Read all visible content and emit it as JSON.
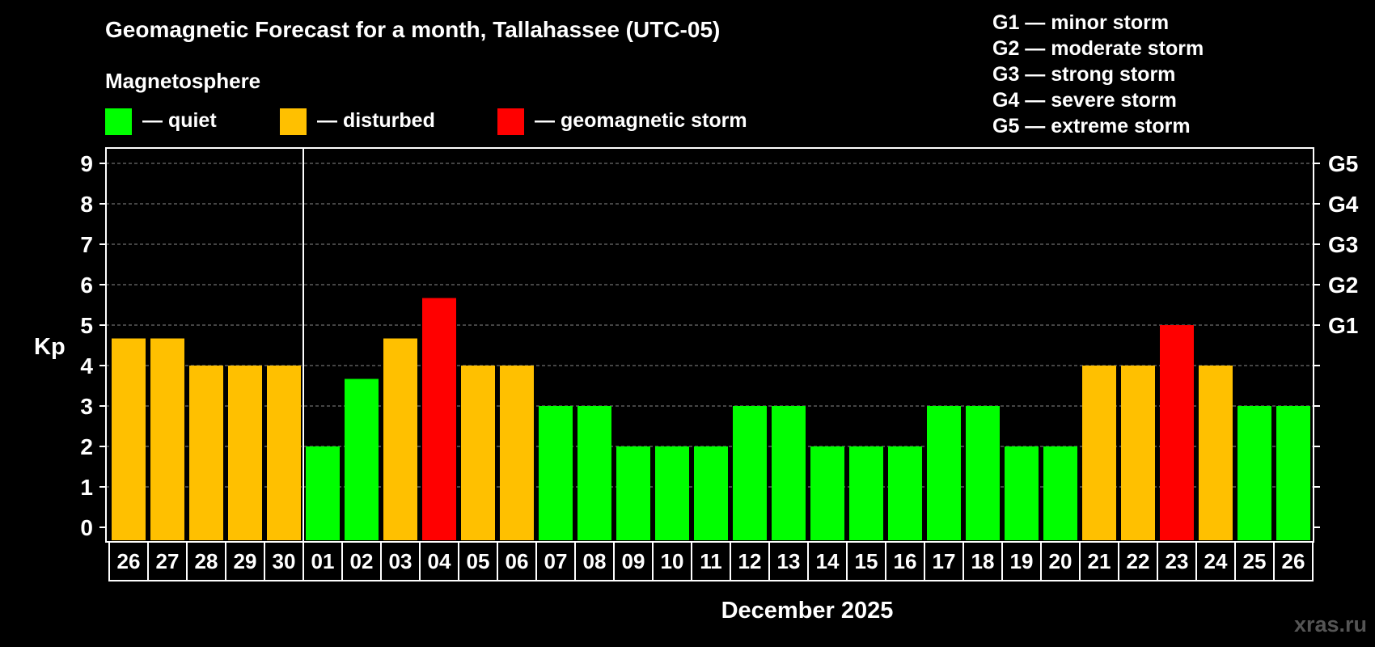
{
  "title": "Geomagnetic Forecast for a month, Tallahassee (UTC-05)",
  "legend": {
    "heading": "Magnetosphere",
    "items": [
      {
        "label": "— quiet",
        "color": "#00ff00"
      },
      {
        "label": "— disturbed",
        "color": "#ffc000"
      },
      {
        "label": "— geomagnetic storm",
        "color": "#ff0000"
      }
    ]
  },
  "storm_scale": [
    "G1 — minor storm",
    "G2 — moderate storm",
    "G3 — strong storm",
    "G4 — severe storm",
    "G5 — extreme storm"
  ],
  "watermark": "xras.ru",
  "chart_data": {
    "type": "bar",
    "ylabel": "Kp",
    "xlabel": "December 2025",
    "ylim": [
      0,
      9
    ],
    "yticks": [
      "0",
      "1",
      "2",
      "3",
      "4",
      "5",
      "6",
      "7",
      "8",
      "9"
    ],
    "right_axis": {
      "5": "G1",
      "6": "G2",
      "7": "G3",
      "8": "G4",
      "9": "G5"
    },
    "grid": "dashed horizontal",
    "month_divider_after_index": 4,
    "categories": [
      "26",
      "27",
      "28",
      "29",
      "30",
      "01",
      "02",
      "03",
      "04",
      "05",
      "06",
      "07",
      "08",
      "09",
      "10",
      "11",
      "12",
      "13",
      "14",
      "15",
      "16",
      "17",
      "18",
      "19",
      "20",
      "21",
      "22",
      "23",
      "24",
      "25",
      "26"
    ],
    "values": [
      4.67,
      4.67,
      4,
      4,
      4,
      2,
      3.67,
      4.67,
      5.67,
      4,
      4,
      3,
      3,
      2,
      2,
      2,
      3,
      3,
      2,
      2,
      2,
      3,
      3,
      2,
      2,
      4,
      4,
      5,
      4,
      3,
      3
    ],
    "status": [
      "disturbed",
      "disturbed",
      "disturbed",
      "disturbed",
      "disturbed",
      "quiet",
      "quiet",
      "disturbed",
      "storm",
      "disturbed",
      "disturbed",
      "quiet",
      "quiet",
      "quiet",
      "quiet",
      "quiet",
      "quiet",
      "quiet",
      "quiet",
      "quiet",
      "quiet",
      "quiet",
      "quiet",
      "quiet",
      "quiet",
      "disturbed",
      "disturbed",
      "storm",
      "disturbed",
      "quiet",
      "quiet"
    ],
    "status_colors": {
      "quiet": "#00ff00",
      "disturbed": "#ffc000",
      "storm": "#ff0000"
    }
  }
}
